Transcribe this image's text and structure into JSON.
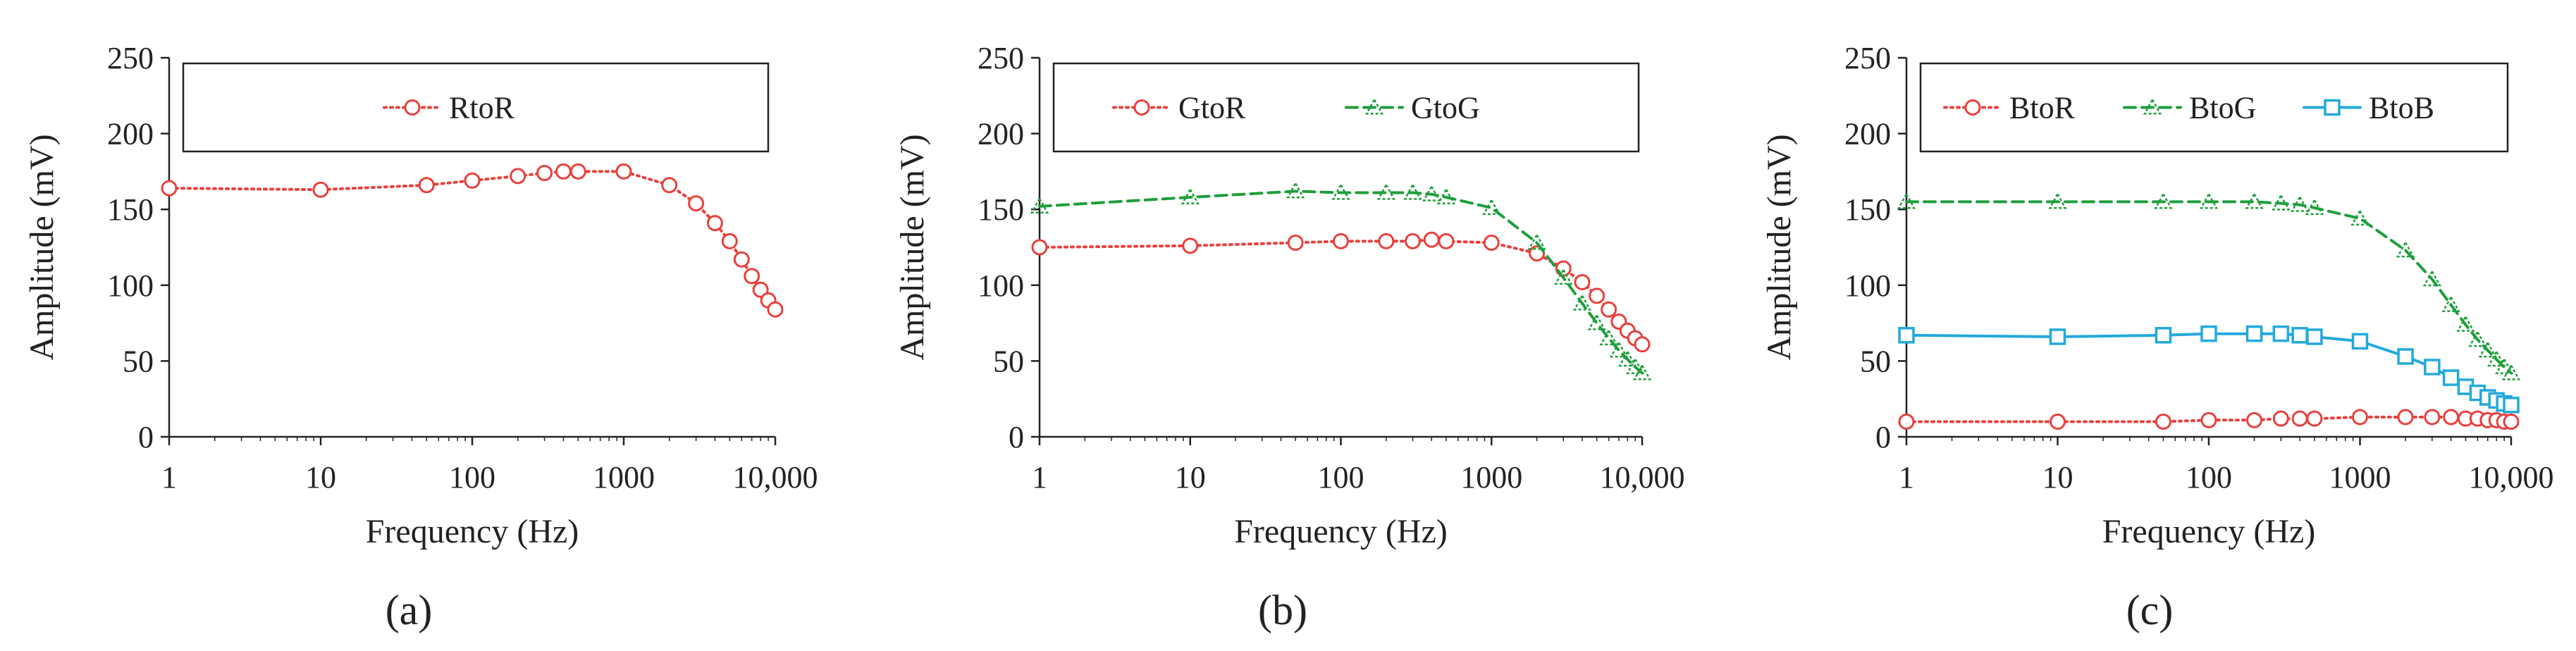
{
  "colors": {
    "red": "#e8403c",
    "green": "#1f9e3c",
    "blue": "#23a9dc",
    "axis": "#222222"
  },
  "chart_data": [
    {
      "type": "line",
      "panel_label": "(a)",
      "xscale": "log",
      "xlabel": "Frequency (Hz)",
      "ylabel": "Amplitude (mV)",
      "xlim": [
        1,
        10000
      ],
      "ylim": [
        0,
        250
      ],
      "xticks": [
        1,
        10,
        100,
        1000,
        10000
      ],
      "xtick_labels": [
        "1",
        "10",
        "100",
        "1000",
        "10,000"
      ],
      "yticks": [
        0,
        50,
        100,
        150,
        200,
        250
      ],
      "ytick_labels": [
        "0",
        "50",
        "100",
        "150",
        "200",
        "250"
      ],
      "grid": false,
      "legend_position": "top",
      "series": [
        {
          "name": "RtoR",
          "color": "red",
          "line": "dotted",
          "marker": "circle",
          "x": [
            1,
            10,
            50,
            100,
            200,
            300,
            400,
            500,
            1000,
            2000,
            3000,
            4000,
            5000,
            6000,
            7000,
            8000,
            9000,
            10000
          ],
          "y": [
            164,
            163,
            166,
            169,
            172,
            174,
            175,
            175,
            175,
            166,
            154,
            141,
            129,
            117,
            106,
            97,
            90,
            84
          ]
        }
      ]
    },
    {
      "type": "line",
      "panel_label": "(b)",
      "xscale": "log",
      "xlabel": "Frequency (Hz)",
      "ylabel": "Amplitude (mV)",
      "xlim": [
        1,
        10000
      ],
      "ylim": [
        0,
        250
      ],
      "xticks": [
        1,
        10,
        100,
        1000,
        10000
      ],
      "xtick_labels": [
        "1",
        "10",
        "100",
        "1000",
        "10,000"
      ],
      "yticks": [
        0,
        50,
        100,
        150,
        200,
        250
      ],
      "ytick_labels": [
        "0",
        "50",
        "100",
        "150",
        "200",
        "250"
      ],
      "grid": false,
      "legend_position": "top",
      "series": [
        {
          "name": "GtoR",
          "color": "red",
          "line": "dotted",
          "marker": "circle",
          "x": [
            1,
            10,
            50,
            100,
            200,
            300,
            400,
            500,
            1000,
            2000,
            3000,
            4000,
            5000,
            6000,
            7000,
            8000,
            9000,
            10000
          ],
          "y": [
            125,
            126,
            128,
            129,
            129,
            129,
            130,
            129,
            128,
            121,
            111,
            102,
            93,
            84,
            76,
            70,
            65,
            61
          ]
        },
        {
          "name": "GtoG",
          "color": "green",
          "line": "dashed",
          "marker": "triangle",
          "x": [
            1,
            10,
            50,
            100,
            200,
            300,
            400,
            500,
            1000,
            2000,
            3000,
            4000,
            5000,
            6000,
            7000,
            8000,
            9000,
            10000
          ],
          "y": [
            152,
            158,
            162,
            161,
            161,
            161,
            160,
            158,
            151,
            128,
            105,
            88,
            75,
            65,
            57,
            51,
            46,
            42
          ]
        }
      ]
    },
    {
      "type": "line",
      "panel_label": "(c)",
      "xscale": "log",
      "xlabel": "Frequency (Hz)",
      "ylabel": "Amplitude (mV)",
      "xlim": [
        1,
        10000
      ],
      "ylim": [
        0,
        250
      ],
      "xticks": [
        1,
        10,
        100,
        1000,
        10000
      ],
      "xtick_labels": [
        "1",
        "10",
        "100",
        "1000",
        "10,000"
      ],
      "yticks": [
        0,
        50,
        100,
        150,
        200,
        250
      ],
      "ytick_labels": [
        "0",
        "50",
        "100",
        "150",
        "200",
        "250"
      ],
      "grid": false,
      "legend_position": "top",
      "series": [
        {
          "name": "BtoR",
          "color": "red",
          "line": "dotted",
          "marker": "circle",
          "x": [
            1,
            10,
            50,
            100,
            200,
            300,
            400,
            500,
            1000,
            2000,
            3000,
            4000,
            5000,
            6000,
            7000,
            8000,
            9000,
            10000
          ],
          "y": [
            10,
            10,
            10,
            11,
            11,
            12,
            12,
            12,
            13,
            13,
            13,
            13,
            12,
            12,
            11,
            11,
            10,
            10
          ]
        },
        {
          "name": "BtoG",
          "color": "green",
          "line": "dashed",
          "marker": "triangle",
          "x": [
            1,
            10,
            50,
            100,
            200,
            300,
            400,
            500,
            1000,
            2000,
            3000,
            4000,
            5000,
            6000,
            7000,
            8000,
            9000,
            10000
          ],
          "y": [
            155,
            155,
            155,
            155,
            155,
            154,
            153,
            151,
            144,
            123,
            104,
            87,
            74,
            64,
            57,
            51,
            46,
            42
          ]
        },
        {
          "name": "BtoB",
          "color": "blue",
          "line": "solid",
          "marker": "square",
          "x": [
            1,
            10,
            50,
            100,
            200,
            300,
            400,
            500,
            1000,
            2000,
            3000,
            4000,
            5000,
            6000,
            7000,
            8000,
            9000,
            10000
          ],
          "y": [
            67,
            66,
            67,
            68,
            68,
            68,
            67,
            66,
            63,
            53,
            46,
            39,
            33,
            29,
            26,
            24,
            22,
            21
          ]
        }
      ]
    }
  ]
}
